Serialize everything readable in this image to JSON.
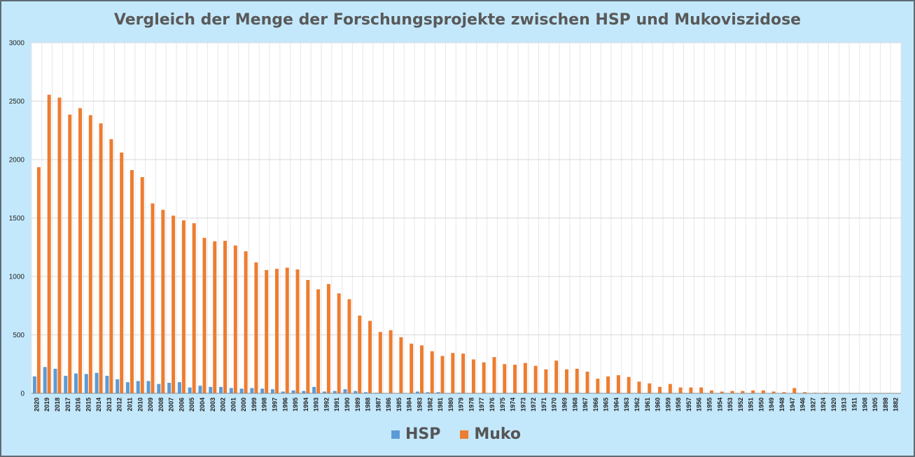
{
  "chart_data": {
    "type": "bar",
    "title": "Vergleich der Menge der Forschungsprojekte zwischen HSP und Mukoviszidose",
    "xlabel": "",
    "ylabel": "",
    "ylim": [
      0,
      3000
    ],
    "yticks": [
      0,
      500,
      1000,
      1500,
      2000,
      2500,
      3000
    ],
    "grid": true,
    "legend": "bottom-center",
    "categories": [
      "2020",
      "2019",
      "2018",
      "2017",
      "2016",
      "2015",
      "2014",
      "2013",
      "2012",
      "2011",
      "2010",
      "2009",
      "2008",
      "2007",
      "2006",
      "2005",
      "2004",
      "2003",
      "2002",
      "2001",
      "2000",
      "1999",
      "1998",
      "1997",
      "1996",
      "1995",
      "1994",
      "1993",
      "1992",
      "1991",
      "1990",
      "1989",
      "1988",
      "1987",
      "1986",
      "1985",
      "1984",
      "1983",
      "1982",
      "1981",
      "1980",
      "1979",
      "1978",
      "1977",
      "1976",
      "1975",
      "1974",
      "1973",
      "1972",
      "1971",
      "1970",
      "1969",
      "1968",
      "1967",
      "1966",
      "1965",
      "1964",
      "1963",
      "1962",
      "1961",
      "1960",
      "1959",
      "1958",
      "1957",
      "1956",
      "1955",
      "1954",
      "1953",
      "1952",
      "1951",
      "1950",
      "1949",
      "1948",
      "1947",
      "1946",
      "1927",
      "1924",
      "1920",
      "1913",
      "1911",
      "1908",
      "1905",
      "1898",
      "1882"
    ],
    "series": [
      {
        "name": "HSP",
        "color": "#5b9bd5",
        "values": [
          145,
          225,
          210,
          150,
          170,
          165,
          175,
          150,
          120,
          95,
          105,
          105,
          80,
          90,
          95,
          50,
          65,
          55,
          55,
          45,
          40,
          45,
          40,
          35,
          15,
          25,
          20,
          55,
          15,
          20,
          35,
          20,
          10,
          5,
          0,
          0,
          0,
          15,
          10,
          10,
          0,
          5,
          0,
          0,
          0,
          0,
          0,
          0,
          0,
          0,
          0,
          0,
          0,
          0,
          0,
          0,
          0,
          0,
          0,
          0,
          0,
          0,
          0,
          0,
          0,
          0,
          0,
          0,
          0,
          0,
          0,
          0,
          0,
          0,
          0,
          0,
          0,
          0,
          0,
          0,
          0,
          0,
          0,
          0
        ]
      },
      {
        "name": "Muko",
        "color": "#ed7d31",
        "values": [
          1935,
          2555,
          2530,
          2385,
          2440,
          2380,
          2310,
          2175,
          2060,
          1910,
          1850,
          1625,
          1570,
          1520,
          1480,
          1455,
          1330,
          1300,
          1305,
          1265,
          1215,
          1120,
          1055,
          1065,
          1075,
          1060,
          970,
          890,
          935,
          855,
          805,
          665,
          620,
          525,
          540,
          480,
          425,
          410,
          360,
          320,
          345,
          340,
          290,
          265,
          310,
          250,
          245,
          260,
          235,
          205,
          280,
          205,
          210,
          185,
          125,
          145,
          155,
          140,
          100,
          85,
          55,
          80,
          50,
          50,
          50,
          25,
          15,
          20,
          20,
          25,
          25,
          15,
          10,
          45,
          10,
          5,
          5,
          0,
          0,
          0,
          0,
          0,
          0,
          0
        ]
      }
    ]
  }
}
